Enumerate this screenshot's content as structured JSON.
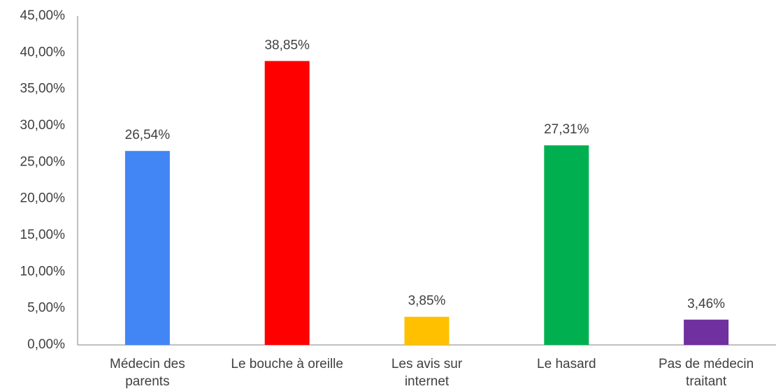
{
  "chart_data": {
    "type": "bar",
    "categories": [
      "Médecin des parents",
      "Le bouche à oreille",
      "Les avis sur internet",
      "Le hasard",
      "Pas de médecin traitant"
    ],
    "values": [
      26.54,
      38.85,
      3.85,
      27.31,
      3.46
    ],
    "value_labels": [
      "26,54%",
      "38,85%",
      "3,85%",
      "27,31%",
      "3,46%"
    ],
    "colors": [
      "#4285f4",
      "#ff0000",
      "#ffc000",
      "#00b050",
      "#7030a0"
    ],
    "ylim": [
      0,
      45
    ],
    "yticks": [
      {
        "value": 0,
        "label": "0,00%"
      },
      {
        "value": 5,
        "label": "5,00%"
      },
      {
        "value": 10,
        "label": "10,00%"
      },
      {
        "value": 15,
        "label": "15,00%"
      },
      {
        "value": 20,
        "label": "20,00%"
      },
      {
        "value": 25,
        "label": "25,00%"
      },
      {
        "value": 30,
        "label": "30,00%"
      },
      {
        "value": 35,
        "label": "35,00%"
      },
      {
        "value": 40,
        "label": "40,00%"
      },
      {
        "value": 45,
        "label": "45,00%"
      }
    ],
    "grid": false
  }
}
